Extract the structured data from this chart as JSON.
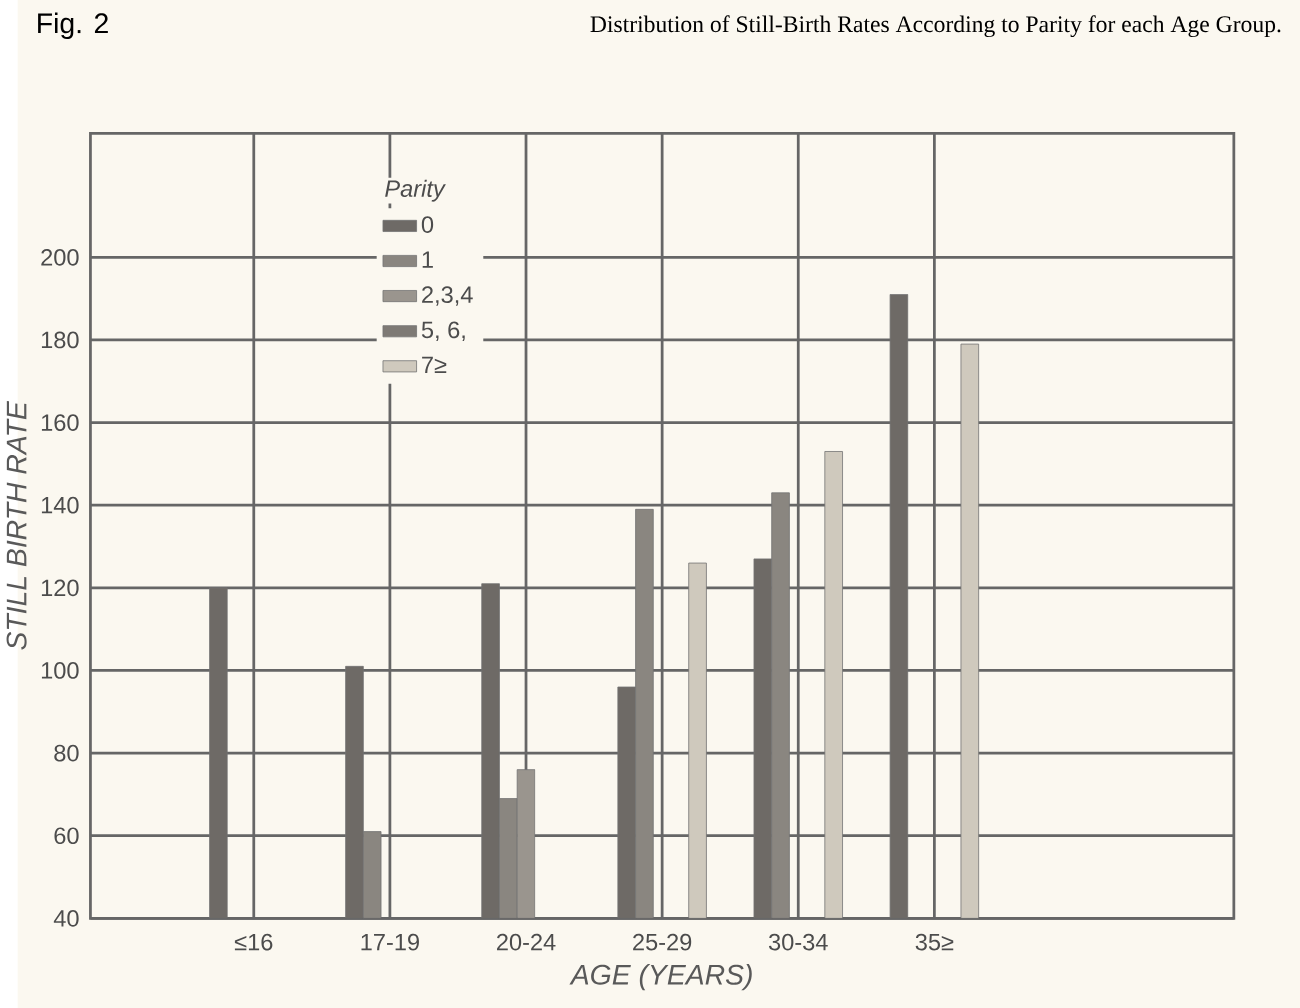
{
  "chart_data": {
    "type": "bar",
    "title": "Distribution of Still-Birth Rates According to Parity for each Age Group.",
    "annotations": [
      "Fig. 2"
    ],
    "xlabel": "AGE (YEARS)",
    "ylabel": "STILL BIRTH RATE",
    "legend_title": "Parity",
    "categories": [
      "≤16",
      "17-19",
      "20-24",
      "25-29",
      "30-34",
      "35≥"
    ],
    "series": [
      {
        "name": "0",
        "color": "#6e6a66",
        "values": [
          120,
          101,
          121,
          96,
          127,
          191
        ]
      },
      {
        "name": "1",
        "color": "#8a8680",
        "values": [
          null,
          61,
          69,
          139,
          143,
          null
        ]
      },
      {
        "name": "2,3,4",
        "color": "#9a958e",
        "values": [
          null,
          null,
          76,
          null,
          null,
          null
        ]
      },
      {
        "name": "5, 6,",
        "color": "#7e7a75",
        "values": [
          null,
          null,
          null,
          null,
          null,
          null
        ]
      },
      {
        "name": "7≥",
        "color": "#cfc9bd",
        "values": [
          null,
          null,
          null,
          126,
          153,
          179
        ]
      }
    ],
    "ylim": [
      40,
      230
    ],
    "yticks": [
      40,
      60,
      80,
      100,
      120,
      140,
      160,
      180,
      200
    ],
    "grid": true,
    "legend": "top left"
  }
}
